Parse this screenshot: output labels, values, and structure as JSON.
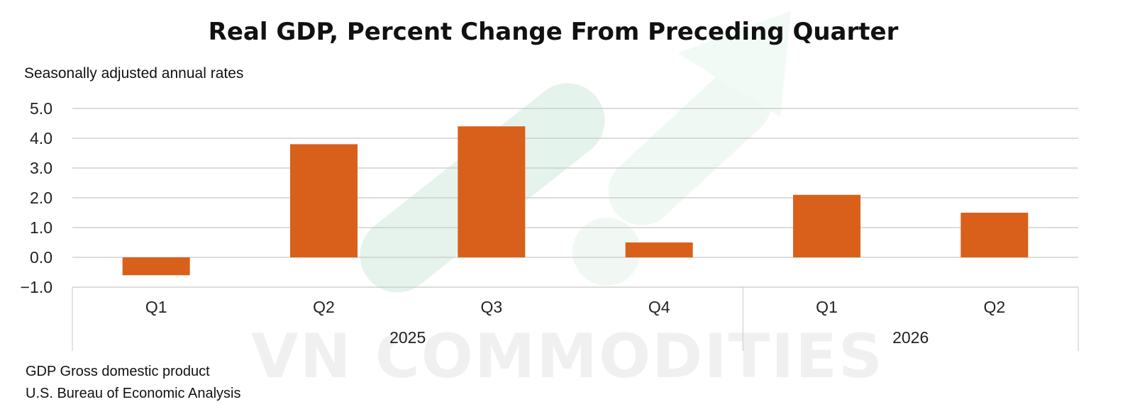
{
  "chart_data": {
    "type": "bar",
    "title": "Real GDP, Percent Change From Preceding Quarter",
    "subtitle": "Seasonally adjusted annual rates",
    "categories": [
      "Q1",
      "Q2",
      "Q3",
      "Q4",
      "Q1",
      "Q2"
    ],
    "groups": [
      {
        "label": "2025",
        "span": 4
      },
      {
        "label": "2026",
        "span": 2
      }
    ],
    "series": [
      {
        "values": [
          -0.6,
          3.8,
          4.4,
          0.5,
          2.1,
          1.5
        ],
        "color": "#d9601a"
      }
    ],
    "yticks": [
      "5.0",
      "4.0",
      "3.0",
      "2.0",
      "1.0",
      "0.0",
      "−1.0"
    ],
    "ylim": [
      -1.0,
      5.0
    ],
    "grid": true,
    "xlabel": "",
    "ylabel": ""
  },
  "footnotes": [
    "GDP Gross domestic product",
    "U.S. Bureau of Economic Analysis"
  ],
  "watermark": "VN COMMODITIES"
}
